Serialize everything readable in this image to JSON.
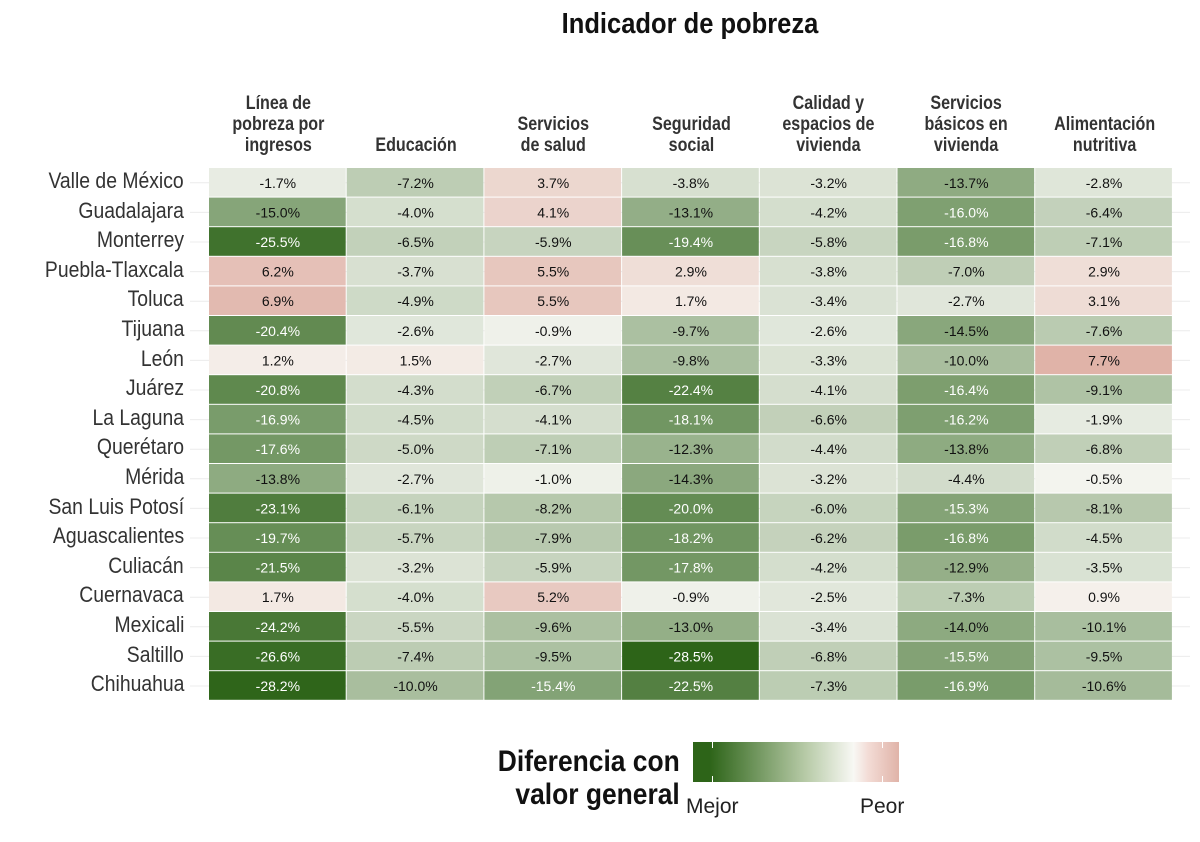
{
  "chart_data": {
    "type": "heatmap",
    "title": "Indicador de pobreza",
    "columns": [
      "Línea de pobreza por ingresos",
      "Educación",
      "Servicios de salud",
      "Seguridad social",
      "Calidad y espacios de vivienda",
      "Servicios básicos en vivienda",
      "Alimentación nutritiva"
    ],
    "column_lines": [
      [
        "Línea de",
        "pobreza por",
        "ingresos"
      ],
      [
        "Educación"
      ],
      [
        "Servicios",
        "de salud"
      ],
      [
        "Seguridad",
        "social"
      ],
      [
        "Calidad y",
        "espacios de",
        "vivienda"
      ],
      [
        "Servicios",
        "básicos en",
        "vivienda"
      ],
      [
        "Alimentación",
        "nutritiva"
      ]
    ],
    "rows": [
      "Valle de México",
      "Guadalajara",
      "Monterrey",
      "Puebla-Tlaxcala",
      "Toluca",
      "Tijuana",
      "León",
      "Juárez",
      "La Laguna",
      "Querétaro",
      "Mérida",
      "San Luis Potosí",
      "Aguascalientes",
      "Culiacán",
      "Cuernavaca",
      "Mexicali",
      "Saltillo",
      "Chihuahua"
    ],
    "values": [
      [
        -1.7,
        -7.2,
        3.7,
        -3.8,
        -3.2,
        -13.7,
        -2.8
      ],
      [
        -15.0,
        -4.0,
        4.1,
        -13.1,
        -4.2,
        -16.0,
        -6.4
      ],
      [
        -25.5,
        -6.5,
        -5.9,
        -19.4,
        -5.8,
        -16.8,
        -7.1
      ],
      [
        6.2,
        -3.7,
        5.5,
        2.9,
        -3.8,
        -7.0,
        2.9
      ],
      [
        6.9,
        -4.9,
        5.5,
        1.7,
        -3.4,
        -2.7,
        3.1
      ],
      [
        -20.4,
        -2.6,
        -0.9,
        -9.7,
        -2.6,
        -14.5,
        -7.6
      ],
      [
        1.2,
        1.5,
        -2.7,
        -9.8,
        -3.3,
        -10.0,
        7.7
      ],
      [
        -20.8,
        -4.3,
        -6.7,
        -22.4,
        -4.1,
        -16.4,
        -9.1
      ],
      [
        -16.9,
        -4.5,
        -4.1,
        -18.1,
        -6.6,
        -16.2,
        -1.9
      ],
      [
        -17.6,
        -5.0,
        -7.1,
        -12.3,
        -4.4,
        -13.8,
        -6.8
      ],
      [
        -13.8,
        -2.7,
        -1.0,
        -14.3,
        -3.2,
        -4.4,
        -0.5
      ],
      [
        -23.1,
        -6.1,
        -8.2,
        -20.0,
        -6.0,
        -15.3,
        -8.1
      ],
      [
        -19.7,
        -5.7,
        -7.9,
        -18.2,
        -6.2,
        -16.8,
        -4.5
      ],
      [
        -21.5,
        -3.2,
        -5.9,
        -17.8,
        -4.2,
        -12.9,
        -3.5
      ],
      [
        1.7,
        -4.0,
        5.2,
        -0.9,
        -2.5,
        -7.3,
        0.9
      ],
      [
        -24.2,
        -5.5,
        -9.6,
        -13.0,
        -3.4,
        -14.0,
        -10.1
      ],
      [
        -26.6,
        -7.4,
        -9.5,
        -28.5,
        -6.8,
        -15.5,
        -9.5
      ],
      [
        -28.2,
        -10.0,
        -15.4,
        -22.5,
        -7.3,
        -16.9,
        -10.6
      ]
    ],
    "value_format": "percent, 1 decimal",
    "legend": {
      "title_lines": [
        "Diferencia con",
        "valor general"
      ],
      "low_label": "Mejor",
      "high_label": "Peor",
      "placement": "bottom"
    },
    "colors": {
      "low": "#2d6418",
      "mid": "#f8f8f4",
      "high": "#e0b3a8"
    }
  }
}
